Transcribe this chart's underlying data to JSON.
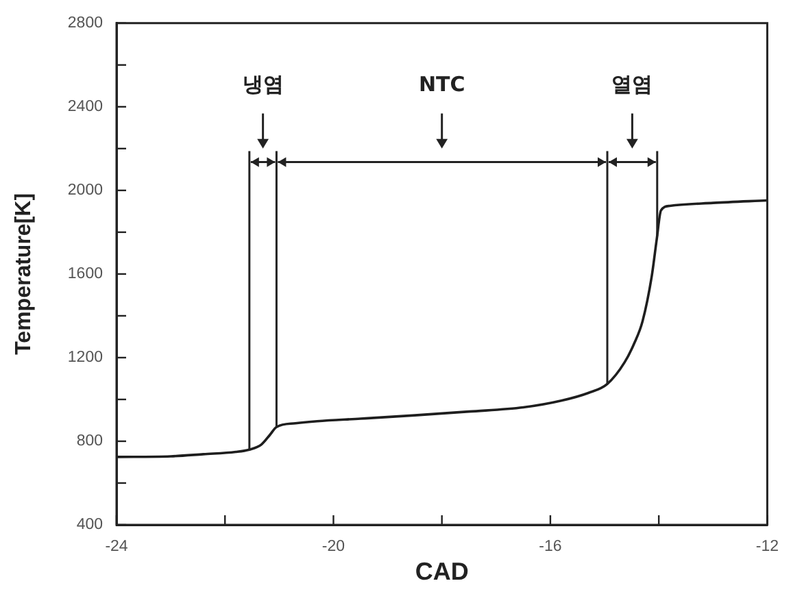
{
  "chart_data": {
    "type": "line",
    "xlabel": "CAD",
    "ylabel": "Temperature[K]",
    "x": [
      -24,
      -23,
      -22.4,
      -21.8,
      -21.55,
      -21.33,
      -21.17,
      -21.05,
      -20.7,
      -20.3,
      -19.5,
      -18.5,
      -17.5,
      -16.5,
      -15.8,
      -15.3,
      -14.95,
      -14.63,
      -14.45,
      -14.3,
      -14.13,
      -14.04,
      -13.96,
      -13.8,
      -13,
      -12
    ],
    "series": [
      {
        "color": "#1e1e1e",
        "values": [
          725,
          728,
          738,
          749,
          760,
          784,
          831,
          868,
          886,
          896,
          908,
          924,
          942,
          962,
          994,
          1031,
          1074,
          1178,
          1270,
          1374,
          1590,
          1763,
          1904,
          1926,
          1940,
          1952
        ]
      }
    ],
    "xlim": [
      -24,
      -12
    ],
    "xticks": [
      -24,
      {
        "value": -22,
        "label": null
      },
      -20,
      {
        "value": -18,
        "label": null
      },
      -16,
      {
        "value": -14,
        "label": null
      },
      -12
    ],
    "ylim": [
      400,
      2800
    ],
    "yticks": [
      400,
      {
        "value": 600,
        "label": null
      },
      800,
      {
        "value": 1000,
        "label": null
      },
      1200,
      {
        "value": 1400,
        "label": null
      },
      1600,
      {
        "value": 1800,
        "label": null
      },
      2000,
      {
        "value": 2200,
        "label": null
      },
      2400,
      {
        "value": 2600,
        "label": null
      },
      2800
    ],
    "ref_lines": [
      {
        "axis": "x",
        "value": -21.55
      },
      {
        "axis": "x",
        "value": -21.05
      },
      {
        "axis": "x",
        "value": -14.95
      },
      {
        "axis": "x",
        "value": -14.03
      }
    ],
    "annotations": [
      "냉염",
      "NTC",
      "열염"
    ]
  }
}
